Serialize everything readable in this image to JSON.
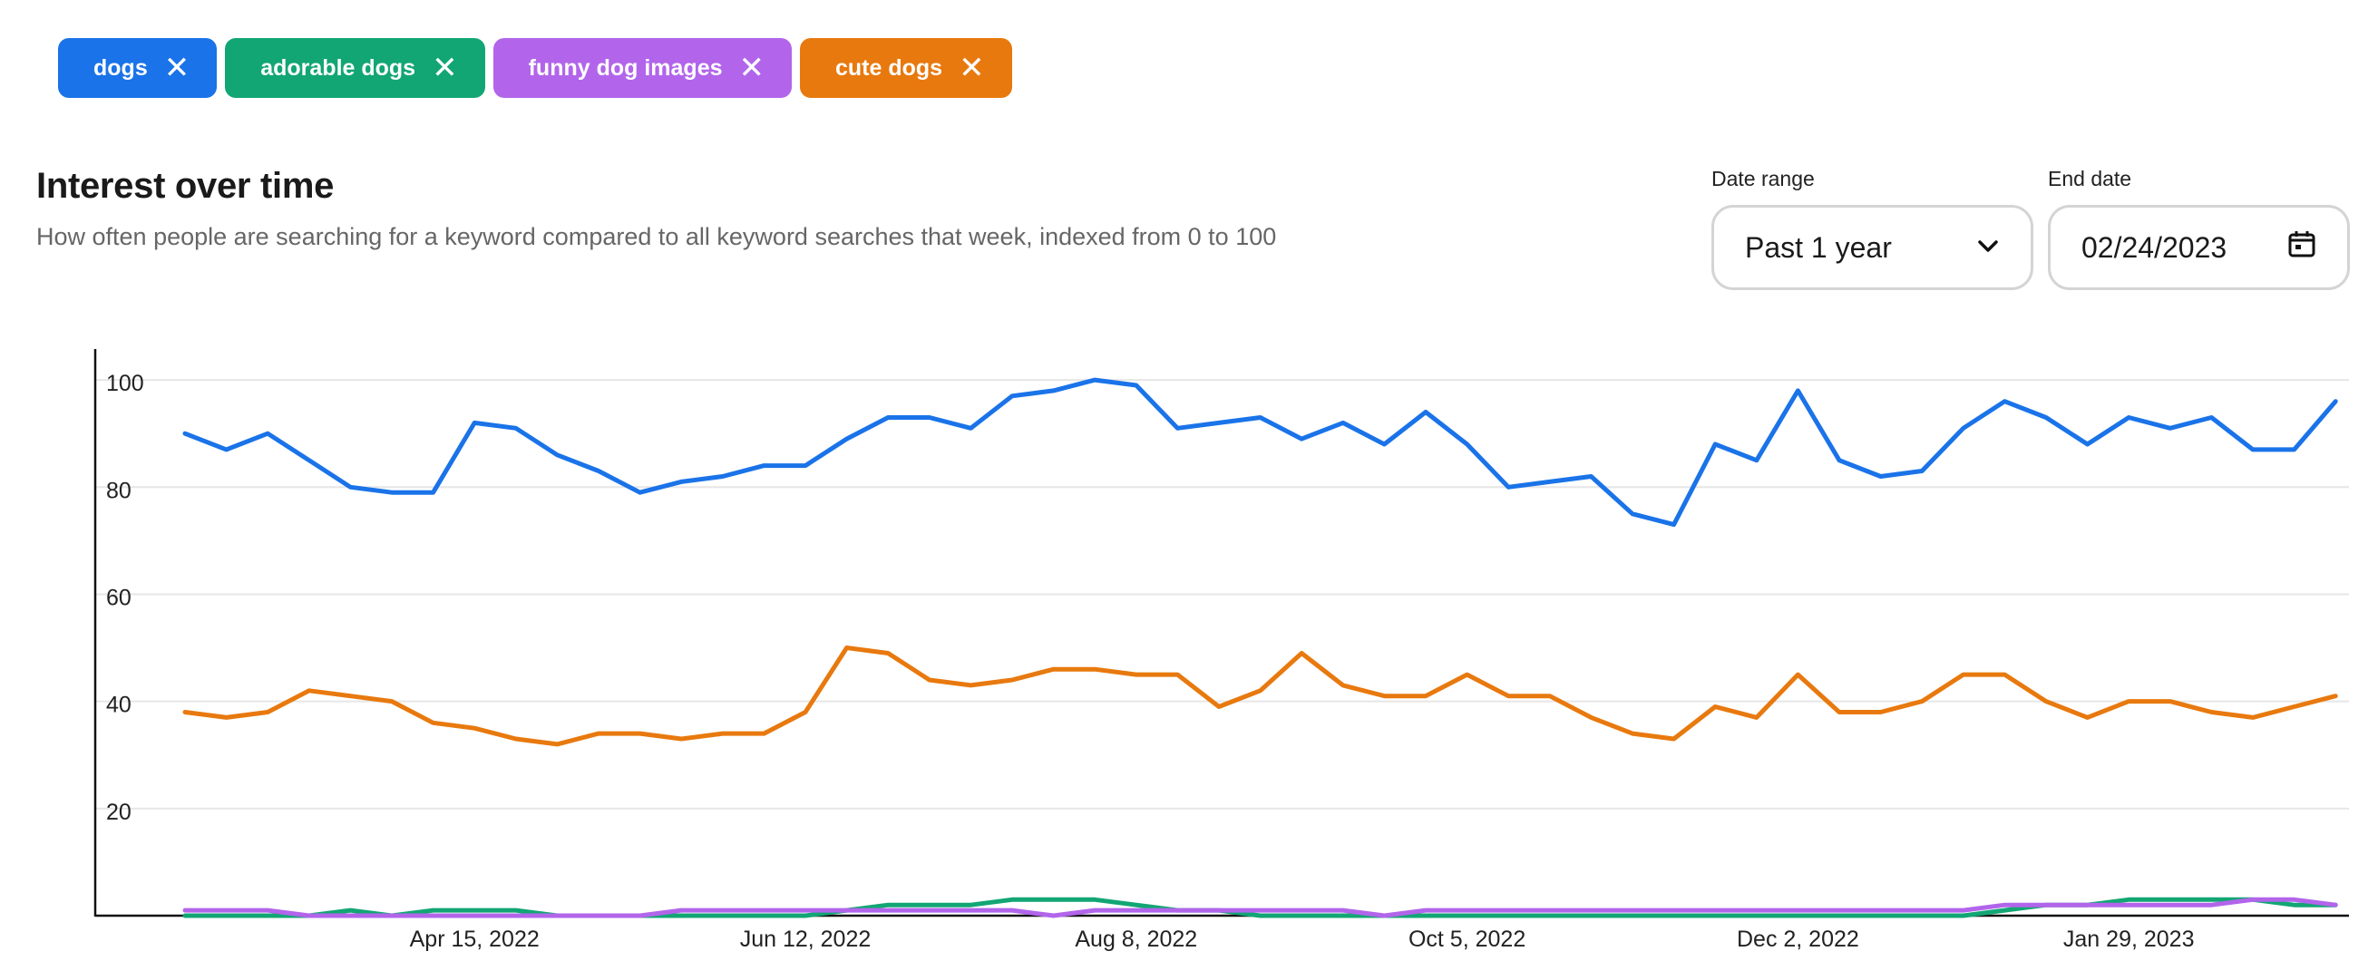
{
  "keywords": [
    {
      "label": "dogs",
      "color": "#1a73e8"
    },
    {
      "label": "adorable dogs",
      "color": "#12a674"
    },
    {
      "label": "funny dog images",
      "color": "#b265eb"
    },
    {
      "label": "cute dogs",
      "color": "#e8790e"
    }
  ],
  "header": {
    "title": "Interest over time",
    "subtitle": "How often people are searching for a keyword compared to all keyword searches that week, indexed from 0 to 100"
  },
  "controls": {
    "date_range_label": "Date range",
    "date_range_value": "Past 1 year",
    "end_date_label": "End date",
    "end_date_value": "02/24/2023"
  },
  "chart_data": {
    "type": "line",
    "ylim": [
      0,
      110
    ],
    "y_ticks": [
      20,
      40,
      60,
      80,
      100
    ],
    "x_ticks": [
      "Apr 15, 2022",
      "Jun 12, 2022",
      "Aug 8, 2022",
      "Oct 5, 2022",
      "Dec 2, 2022",
      "Jan 29, 2023"
    ],
    "x_tick_week_index": [
      7,
      15,
      23,
      31,
      39,
      47
    ],
    "series": [
      {
        "name": "dogs",
        "color": "#1a73e8",
        "values": [
          90,
          87,
          90,
          85,
          80,
          79,
          79,
          92,
          91,
          86,
          83,
          79,
          81,
          82,
          84,
          84,
          89,
          93,
          93,
          91,
          97,
          98,
          100,
          99,
          91,
          92,
          93,
          89,
          92,
          88,
          94,
          88,
          80,
          81,
          82,
          75,
          73,
          88,
          85,
          98,
          85,
          82,
          83,
          91,
          96,
          93,
          88,
          93,
          91,
          93,
          87,
          87,
          96
        ]
      },
      {
        "name": "cute dogs",
        "color": "#e8790e",
        "values": [
          38,
          37,
          38,
          42,
          41,
          40,
          36,
          35,
          33,
          32,
          34,
          34,
          33,
          34,
          34,
          38,
          50,
          49,
          44,
          43,
          44,
          46,
          46,
          45,
          45,
          39,
          42,
          49,
          43,
          41,
          41,
          45,
          41,
          41,
          37,
          34,
          33,
          39,
          37,
          45,
          38,
          38,
          40,
          45,
          45,
          40,
          37,
          40,
          40,
          38,
          37,
          39,
          41
        ]
      },
      {
        "name": "adorable dogs",
        "color": "#12a674",
        "values": [
          0,
          0,
          0,
          0,
          1,
          0,
          1,
          1,
          1,
          0,
          0,
          0,
          0,
          0,
          0,
          0,
          1,
          2,
          2,
          2,
          3,
          3,
          3,
          2,
          1,
          1,
          0,
          0,
          0,
          0,
          0,
          0,
          0,
          0,
          0,
          0,
          0,
          0,
          0,
          0,
          0,
          0,
          0,
          0,
          1,
          2,
          2,
          3,
          3,
          3,
          3,
          2,
          2
        ]
      },
      {
        "name": "funny dog images",
        "color": "#b265eb",
        "values": [
          1,
          1,
          1,
          0,
          0,
          0,
          0,
          0,
          0,
          0,
          0,
          0,
          1,
          1,
          1,
          1,
          1,
          1,
          1,
          1,
          1,
          0,
          1,
          1,
          1,
          1,
          1,
          1,
          1,
          0,
          1,
          1,
          1,
          1,
          1,
          1,
          1,
          1,
          1,
          1,
          1,
          1,
          1,
          1,
          2,
          2,
          2,
          2,
          2,
          2,
          3,
          3,
          2
        ]
      }
    ]
  }
}
